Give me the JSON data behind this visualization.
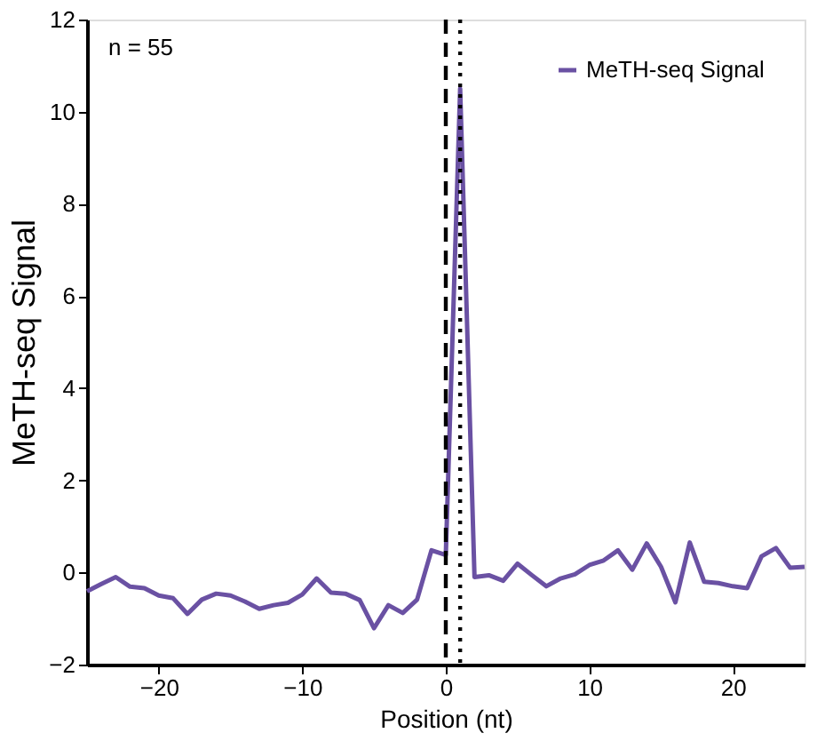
{
  "chart_data": {
    "type": "line",
    "xlabel": "Position (nt)",
    "ylabel": "MeTH-seq Signal",
    "annotations": [
      "n = 55"
    ],
    "x": [
      -25,
      -24,
      -23,
      -22,
      -21,
      -20,
      -19,
      -18,
      -17,
      -16,
      -15,
      -14,
      -13,
      -12,
      -11,
      -10,
      -9,
      -8,
      -7,
      -6,
      -5,
      -4,
      -3,
      -2,
      -1,
      0,
      1,
      2,
      3,
      4,
      5,
      6,
      7,
      8,
      9,
      10,
      11,
      12,
      13,
      14,
      15,
      16,
      17,
      18,
      19,
      20,
      21,
      22,
      23,
      24,
      25
    ],
    "series": [
      {
        "name": "MeTH-seq Signal",
        "color": "#6a51a3",
        "values": [
          -0.41,
          -0.25,
          -0.1,
          -0.31,
          -0.34,
          -0.5,
          -0.56,
          -0.9,
          -0.59,
          -0.46,
          -0.5,
          -0.63,
          -0.79,
          -0.71,
          -0.66,
          -0.48,
          -0.13,
          -0.44,
          -0.46,
          -0.6,
          -1.21,
          -0.71,
          -0.88,
          -0.59,
          0.48,
          0.38,
          10.5,
          -0.1,
          -0.06,
          -0.18,
          0.19,
          -0.06,
          -0.3,
          -0.13,
          -0.04,
          0.16,
          0.26,
          0.48,
          0.06,
          0.63,
          0.12,
          -0.65,
          0.65,
          -0.2,
          -0.23,
          -0.3,
          -0.34,
          0.35,
          0.53,
          0.1,
          0.12
        ]
      }
    ],
    "xlim": [
      -25,
      25
    ],
    "xticks": [
      -20,
      -10,
      0,
      10,
      20
    ],
    "ylim": [
      -2,
      12
    ],
    "yticks": [
      -2,
      0,
      2,
      4,
      6,
      8,
      10,
      12
    ],
    "ref_lines": [
      {
        "axis": "x",
        "value": 0,
        "label": null,
        "color": "#000000",
        "line_style": "dashed"
      },
      {
        "axis": "x",
        "value": 1,
        "label": null,
        "color": "#000000",
        "line_style": "dotted"
      }
    ],
    "legend": "top right",
    "grid": false,
    "marker": "none",
    "line_style": "solid"
  }
}
